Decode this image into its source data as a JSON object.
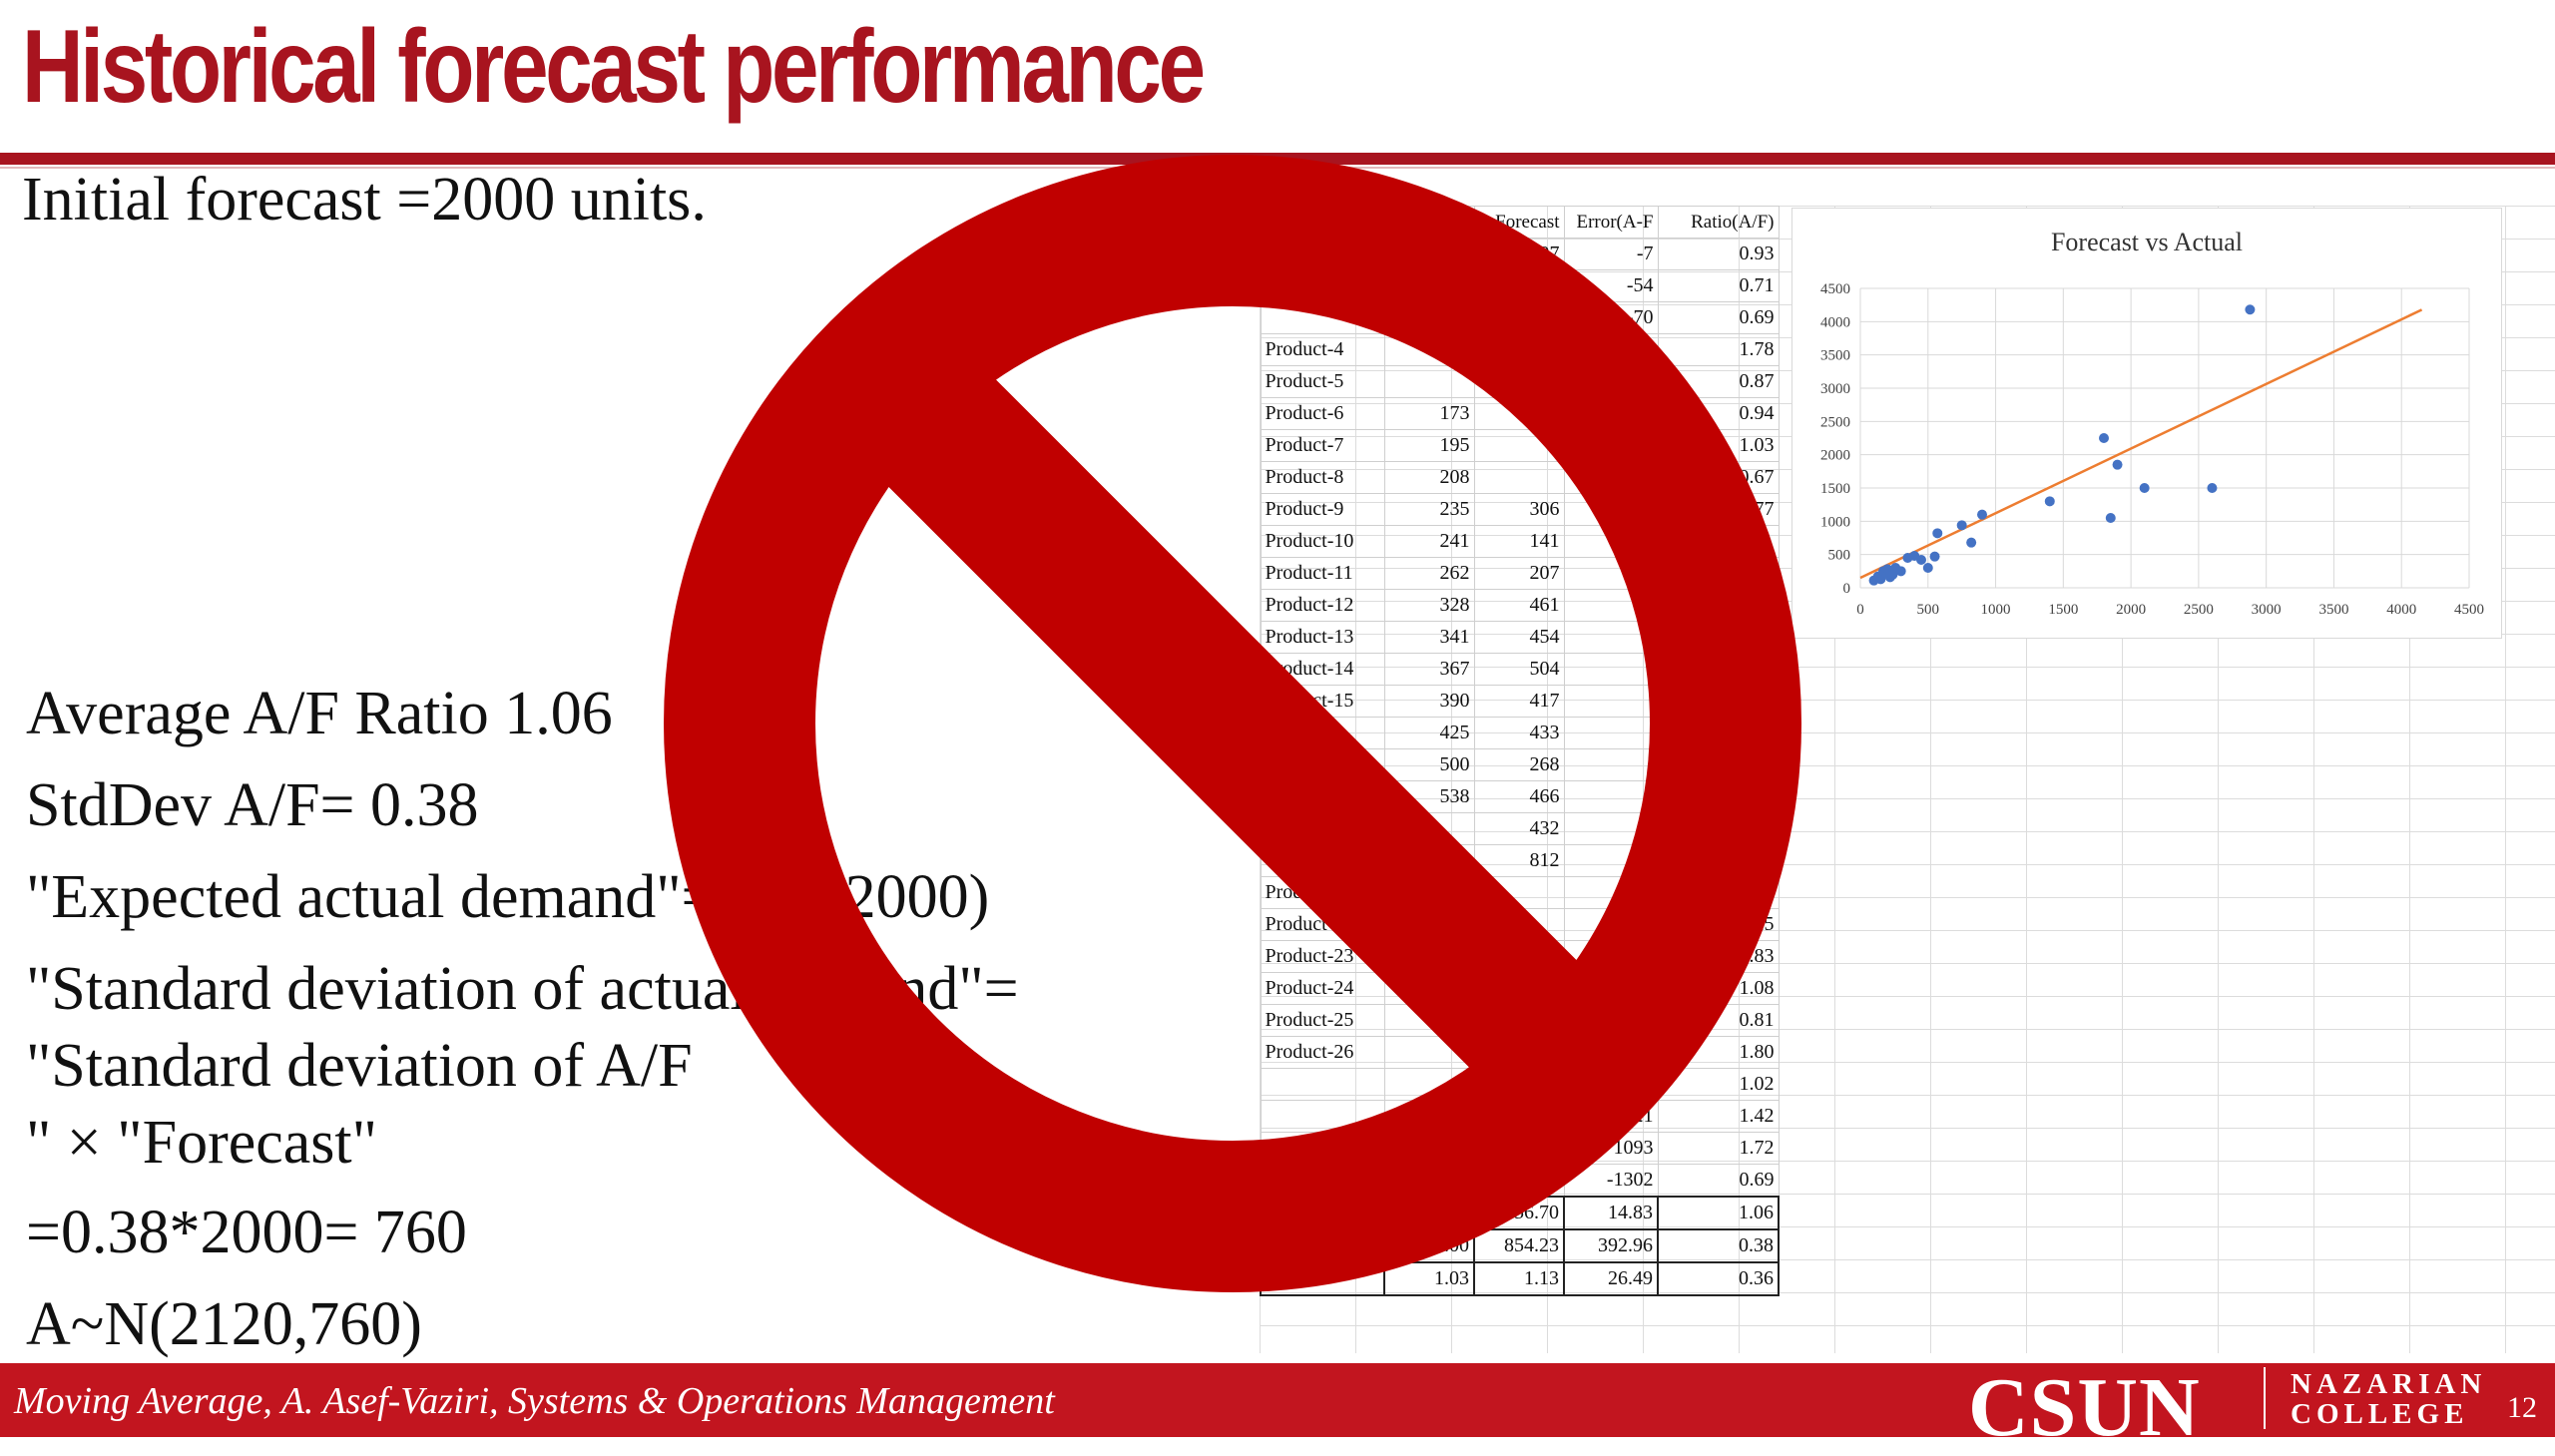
{
  "slide": {
    "title": "Historical forecast performance",
    "line_initial": "Initial forecast =2000 units.",
    "line_avg": "Average A/F Ratio 1.06",
    "line_std": "StdDev A/F= 0.38",
    "line_exp": "\"Expected actual demand\"=1.06(2000)",
    "line_sd1": "\"Standard deviation of actual demand\"=",
    "line_sd2": "\"Standard deviation of A/F",
    "line_sd3": "\" × \"Forecast\"",
    "line_calc": "=0.38*2000= 760",
    "line_dist": "A~N(2120,760)"
  },
  "sheet": {
    "header": [
      "",
      "",
      "Forecast",
      "Error(A-F",
      "Ratio(A/F)"
    ],
    "rows": [
      [
        "",
        "",
        "97",
        "-7",
        "0.93"
      ],
      [
        "",
        "",
        "",
        "-54",
        "0.71"
      ],
      [
        "",
        "",
        "",
        "-70",
        "0.69"
      ],
      [
        "Product-4",
        "",
        "",
        "",
        "1.78"
      ],
      [
        "Product-5",
        "",
        "",
        "",
        "0.87"
      ],
      [
        "Product-6",
        "173",
        "",
        "",
        "0.94"
      ],
      [
        "Product-7",
        "195",
        "",
        "",
        "1.03"
      ],
      [
        "Product-8",
        "208",
        "",
        "",
        "0.67"
      ],
      [
        "Product-9",
        "235",
        "306",
        "",
        "0.77"
      ],
      [
        "Product-10",
        "241",
        "141",
        "",
        ""
      ],
      [
        "Product-11",
        "262",
        "207",
        "",
        ""
      ],
      [
        "Product-12",
        "328",
        "461",
        "",
        ""
      ],
      [
        "Product-13",
        "341",
        "454",
        "",
        ""
      ],
      [
        "Product-14",
        "367",
        "504",
        "",
        ""
      ],
      [
        "Product-15",
        "390",
        "417",
        "",
        ""
      ],
      [
        "",
        "425",
        "433",
        "",
        ""
      ],
      [
        "",
        "500",
        "268",
        "",
        ""
      ],
      [
        "",
        "538",
        "466",
        "",
        ""
      ],
      [
        "",
        "",
        "432",
        "",
        ""
      ],
      [
        "",
        "",
        "812",
        "",
        ""
      ],
      [
        "Product-21",
        "",
        "",
        "",
        "0.82"
      ],
      [
        "Product-22",
        "",
        "",
        "",
        "1.25"
      ],
      [
        "Product-23",
        "",
        "",
        "",
        "0.83"
      ],
      [
        "Product-24",
        "",
        "",
        "",
        "1.08"
      ],
      [
        "Product-25",
        "",
        "",
        "",
        "0.81"
      ],
      [
        "Product-26",
        "",
        "",
        "",
        "1.80"
      ],
      [
        "",
        "",
        "",
        "46",
        "1.02"
      ],
      [
        "",
        "",
        "",
        "621",
        "1.42"
      ],
      [
        "",
        "",
        "",
        "1093",
        "1.72"
      ],
      [
        "",
        "",
        "4181",
        "-1302",
        "0.69"
      ]
    ],
    "summary": [
      [
        "",
        "741.53",
        "756.70",
        "14.83",
        "1.06"
      ],
      [
        "StDev",
        "797.00",
        "854.23",
        "392.96",
        "0.38"
      ],
      [
        "CV",
        "1.03",
        "1.13",
        "26.49",
        "0.36"
      ]
    ]
  },
  "chart_data": {
    "type": "scatter",
    "title": "Forecast vs Actual",
    "xlabel": "",
    "ylabel": "",
    "xlim": [
      0,
      4500
    ],
    "ylim": [
      0,
      4500
    ],
    "xticks": [
      0,
      500,
      1000,
      1500,
      2000,
      2500,
      3000,
      3500,
      4000,
      4500
    ],
    "yticks": [
      0,
      500,
      1000,
      1500,
      2000,
      2500,
      3000,
      3500,
      4000,
      4500
    ],
    "grid": true,
    "point_color": "#4472c4",
    "trend_color": "#ed7d31",
    "points": [
      [
        100,
        110
      ],
      [
        130,
        170
      ],
      [
        150,
        130
      ],
      [
        170,
        250
      ],
      [
        190,
        220
      ],
      [
        200,
        280
      ],
      [
        220,
        160
      ],
      [
        240,
        200
      ],
      [
        260,
        300
      ],
      [
        300,
        250
      ],
      [
        350,
        450
      ],
      [
        400,
        480
      ],
      [
        450,
        420
      ],
      [
        500,
        300
      ],
      [
        550,
        470
      ],
      [
        570,
        820
      ],
      [
        750,
        940
      ],
      [
        820,
        680
      ],
      [
        900,
        1100
      ],
      [
        1400,
        1300
      ],
      [
        1800,
        2250
      ],
      [
        1850,
        1050
      ],
      [
        1900,
        1850
      ],
      [
        2100,
        1500
      ],
      [
        2600,
        1500
      ],
      [
        2880,
        4181
      ]
    ],
    "trend": [
      [
        0,
        150
      ],
      [
        4150,
        4180
      ]
    ]
  },
  "footer": {
    "text": "Moving Average, A. Asef-Vaziri, Systems & Operations Management",
    "logo_main": "CSUN",
    "logo_sub1": "NAZARIAN",
    "logo_sub2": "COLLEGE",
    "page": "12"
  },
  "colors": {
    "brand_red": "#a8141f",
    "footer_red": "#c2151f",
    "prohibition_red": "#c00000"
  },
  "overlay": {
    "icon": "prohibition-icon"
  }
}
